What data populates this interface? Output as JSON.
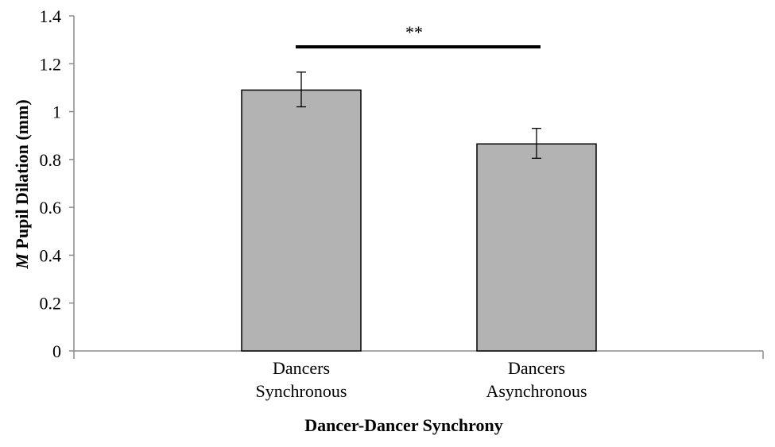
{
  "chart_data": {
    "type": "bar",
    "categories": [
      [
        "Dancers",
        "Synchronous"
      ],
      [
        "Dancers",
        "Asynchronous"
      ]
    ],
    "values": [
      1.09,
      0.865
    ],
    "error_bars": [
      {
        "low": 1.02,
        "high": 1.165
      },
      {
        "low": 0.805,
        "high": 0.93
      }
    ],
    "bar_color": "#b3b3b3",
    "bar_stroke": "#000000",
    "xlabel": "Dancer-Dancer Synchrony",
    "ylabel": "M Pupil Dilation (mm)",
    "ylabel_italic_prefix": "M",
    "ylabel_rest": " Pupil Dilation (mm)",
    "ylim": [
      0,
      1.4
    ],
    "yticks": [
      0,
      0.2,
      0.4,
      0.6,
      0.8,
      1,
      1.2,
      1.4
    ],
    "ytick_labels": [
      "0",
      "0.2",
      "0.4",
      "0.6",
      "0.8",
      "1",
      "1.2",
      "1.4"
    ],
    "grid": false,
    "significance": {
      "label": "**",
      "from": 0,
      "to": 1,
      "y": 1.27
    }
  }
}
